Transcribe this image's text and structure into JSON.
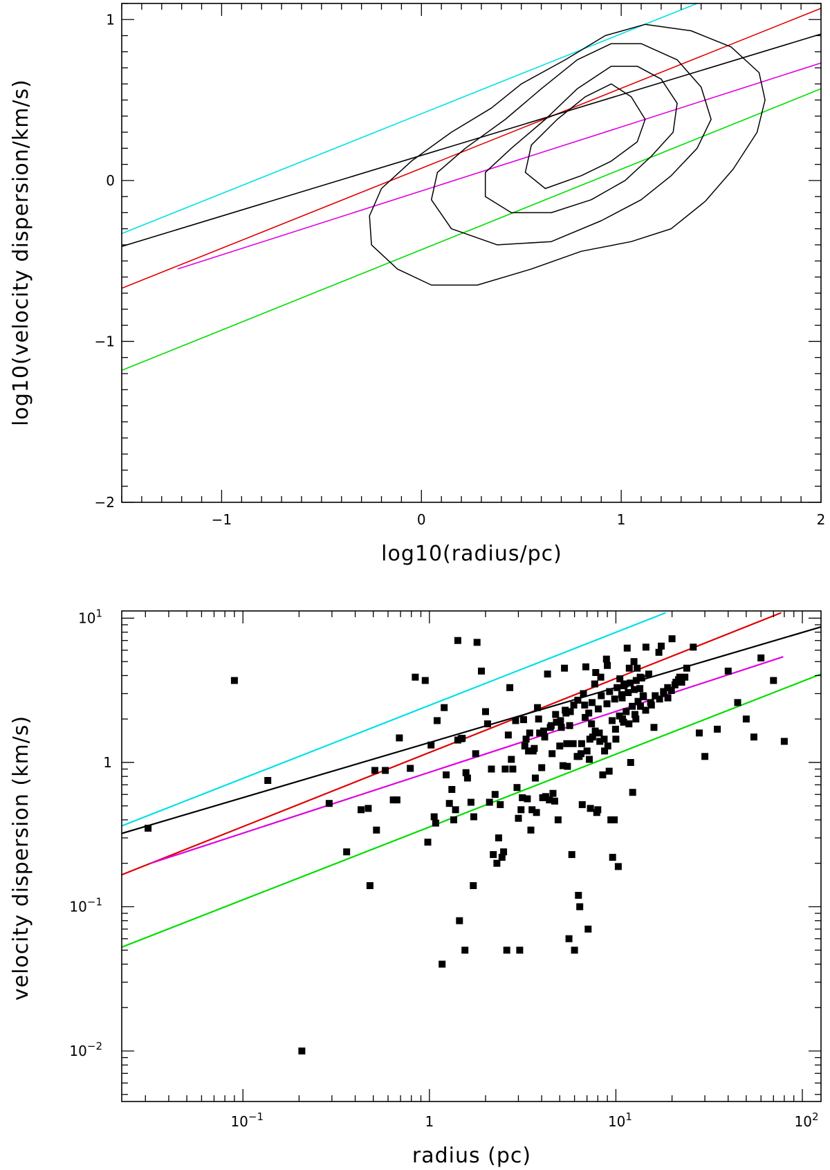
{
  "chart_data": [
    {
      "type": "line",
      "panel": "top",
      "xlabel": "log10(radius/pc)",
      "ylabel": "log10(velocity dispersion/km/s)",
      "xlim": [
        -1.5,
        2
      ],
      "ylim": [
        -2,
        1.1
      ],
      "xticks": [
        -1,
        0,
        1,
        2
      ],
      "xtick_labels": [
        "−1",
        "0",
        "1",
        "2"
      ],
      "yticks": [
        -2,
        -1,
        0,
        1
      ],
      "ytick_labels": [
        "−2",
        "−1",
        "0",
        "1"
      ],
      "grid": false,
      "series": [
        {
          "name": "cyan",
          "color": "#00e0e8",
          "x": [
            -1.5,
            1.38
          ],
          "y": [
            -0.33,
            1.1
          ]
        },
        {
          "name": "red",
          "color": "#e00000",
          "x": [
            -1.5,
            2.0
          ],
          "y": [
            -0.67,
            1.07
          ]
        },
        {
          "name": "black",
          "color": "#000000",
          "x": [
            -1.5,
            2.0
          ],
          "y": [
            -0.41,
            0.91
          ]
        },
        {
          "name": "magenta",
          "color": "#e000e0",
          "x": [
            -1.22,
            2.0
          ],
          "y": [
            -0.55,
            0.73
          ]
        },
        {
          "name": "green",
          "color": "#00dd00",
          "x": [
            -1.5,
            2.0
          ],
          "y": [
            -1.18,
            0.57
          ]
        }
      ],
      "contours": [
        {
          "level": 1,
          "x": [
            1.12,
            1.35,
            1.55,
            1.69,
            1.72,
            1.68,
            1.56,
            1.42,
            1.25,
            1.05,
            0.8,
            0.55,
            0.28,
            0.05,
            -0.12,
            -0.25,
            -0.26,
            -0.2,
            -0.05,
            0.15,
            0.35,
            0.5,
            0.72,
            0.92
          ],
          "y": [
            0.97,
            0.93,
            0.83,
            0.67,
            0.5,
            0.3,
            0.07,
            -0.13,
            -0.3,
            -0.38,
            -0.44,
            -0.55,
            -0.65,
            -0.65,
            -0.55,
            -0.4,
            -0.22,
            -0.05,
            0.12,
            0.3,
            0.45,
            0.6,
            0.75,
            0.9
          ]
        },
        {
          "level": 2,
          "x": [
            1.1,
            1.28,
            1.4,
            1.45,
            1.38,
            1.25,
            1.1,
            0.9,
            0.65,
            0.38,
            0.15,
            0.05,
            0.08,
            0.22,
            0.42,
            0.6,
            0.78,
            0.95
          ],
          "y": [
            0.85,
            0.75,
            0.58,
            0.38,
            0.2,
            0.03,
            -0.12,
            -0.25,
            -0.38,
            -0.4,
            -0.3,
            -0.12,
            0.05,
            0.2,
            0.38,
            0.57,
            0.75,
            0.85
          ]
        },
        {
          "level": 3,
          "x": [
            1.08,
            1.2,
            1.28,
            1.26,
            1.15,
            1.02,
            0.85,
            0.65,
            0.45,
            0.32,
            0.32,
            0.45,
            0.62,
            0.78,
            0.95
          ],
          "y": [
            0.71,
            0.63,
            0.48,
            0.3,
            0.15,
            0.0,
            -0.12,
            -0.2,
            -0.2,
            -0.1,
            0.05,
            0.2,
            0.38,
            0.57,
            0.71
          ]
        },
        {
          "level": 4,
          "x": [
            0.95,
            1.05,
            1.12,
            1.08,
            0.95,
            0.8,
            0.62,
            0.52,
            0.55,
            0.68,
            0.82,
            0.95
          ],
          "y": [
            0.6,
            0.52,
            0.38,
            0.24,
            0.12,
            0.03,
            -0.05,
            0.05,
            0.22,
            0.38,
            0.52,
            0.6
          ]
        }
      ]
    },
    {
      "type": "scatter",
      "panel": "bottom",
      "xlabel": "radius (pc)",
      "ylabel": "velocity dispersion (km/s)",
      "xscale": "log",
      "yscale": "log",
      "xlim_log10": [
        -1.65,
        2.1
      ],
      "ylim_log10": [
        -2.35,
        1.05
      ],
      "xticks_log10": [
        -1,
        0,
        1,
        2
      ],
      "xtick_labels": [
        {
          "base": "10",
          "exp": "−1"
        },
        {
          "base": "1",
          "exp": ""
        },
        {
          "base": "10",
          "exp": "1"
        },
        {
          "base": "10",
          "exp": "2"
        }
      ],
      "yticks_log10": [
        -2,
        -1,
        0,
        1
      ],
      "ytick_labels": [
        {
          "base": "10",
          "exp": "−2"
        },
        {
          "base": "10",
          "exp": "−1"
        },
        {
          "base": "1",
          "exp": ""
        },
        {
          "base": "10",
          "exp": "1"
        }
      ],
      "grid": false,
      "series": [
        {
          "name": "cyan",
          "color": "#00e0e8",
          "x": [
            0.022,
            18.5
          ],
          "y": [
            0.36,
            10.9
          ]
        },
        {
          "name": "red",
          "color": "#e00000",
          "x": [
            0.022,
            77
          ],
          "y": [
            0.165,
            10.9
          ]
        },
        {
          "name": "black",
          "color": "#000000",
          "x": [
            0.022,
            126
          ],
          "y": [
            0.32,
            8.7
          ]
        },
        {
          "name": "magenta",
          "color": "#e000e0",
          "x": [
            0.032,
            79
          ],
          "y": [
            0.2,
            5.4
          ]
        },
        {
          "name": "green",
          "color": "#00dd00",
          "x": [
            0.022,
            126
          ],
          "y": [
            0.052,
            4.1
          ]
        }
      ],
      "points": {
        "x": [
          0.031,
          0.09,
          0.136,
          0.207,
          0.29,
          0.36,
          0.43,
          0.47,
          0.48,
          0.51,
          0.52,
          0.58,
          0.64,
          0.67,
          0.69,
          0.79,
          0.84,
          0.95,
          0.98,
          1.02,
          1.06,
          1.08,
          1.1,
          1.17,
          1.23,
          1.28,
          1.32,
          1.35,
          1.38,
          1.42,
          1.42,
          1.45,
          1.48,
          1.5,
          1.55,
          1.57,
          1.6,
          1.67,
          1.72,
          1.73,
          1.77,
          1.8,
          2.0,
          2.05,
          2.1,
          2.2,
          2.3,
          2.35,
          2.4,
          2.45,
          2.5,
          2.6,
          2.65,
          2.7,
          2.8,
          2.9,
          2.95,
          3.0,
          3.05,
          3.1,
          3.15,
          3.2,
          3.3,
          3.35,
          3.4,
          3.5,
          3.55,
          3.6,
          3.7,
          3.75,
          3.8,
          3.9,
          4.0,
          4.05,
          4.1,
          4.2,
          4.3,
          4.4,
          4.5,
          4.6,
          4.7,
          4.8,
          4.9,
          5.0,
          5.1,
          5.2,
          5.3,
          5.4,
          5.5,
          5.6,
          5.7,
          5.8,
          5.9,
          6.0,
          6.2,
          6.3,
          6.4,
          6.5,
          6.6,
          6.7,
          6.8,
          6.9,
          7.0,
          7.1,
          7.2,
          7.3,
          7.4,
          7.5,
          7.7,
          7.8,
          7.9,
          8.0,
          8.2,
          8.3,
          8.5,
          8.7,
          8.9,
          9.0,
          9.2,
          9.4,
          9.6,
          9.8,
          10.0,
          10.3,
          10.5,
          10.8,
          11.0,
          11.2,
          11.5,
          11.8,
          12.0,
          12.3,
          12.5,
          12.8,
          13.0,
          13.5,
          14.0,
          14.5,
          15.0,
          15.5,
          16.0,
          17.0,
          17.5,
          18.0,
          19.0,
          20.0,
          21.0,
          22.0,
          24.0,
          26.0,
          28.0,
          30.0,
          35.0,
          40.0,
          45.0,
          50.0,
          55.0,
          60.0,
          70.0,
          80.0,
          1.2,
          1.9,
          2.25,
          2.55,
          3.25,
          3.45,
          3.85,
          4.15,
          4.45,
          4.75,
          5.05,
          5.35,
          5.65,
          5.95,
          6.25,
          6.55,
          6.85,
          7.15,
          7.45,
          7.75,
          8.05,
          8.35,
          8.65,
          8.95,
          9.25,
          9.55,
          9.85,
          10.15,
          10.45,
          10.75,
          11.05,
          11.35,
          11.65,
          11.95,
          12.25,
          12.55,
          12.85,
          13.15,
          13.45,
          13.75,
          14.05,
          2.15,
          2.75,
          3.65,
          4.55,
          5.45,
          6.35,
          7.25,
          8.15,
          9.05,
          9.95,
          10.85,
          11.75,
          12.65,
          13.55,
          14.45,
          15.35,
          16.25,
          17.15,
          18.05,
          18.95,
          19.85,
          20.75,
          21.65,
          22.55,
          23.45
        ],
        "y": [
          0.35,
          3.7,
          0.75,
          0.01,
          0.52,
          0.24,
          0.47,
          0.48,
          0.14,
          0.88,
          0.34,
          0.88,
          0.55,
          0.55,
          1.48,
          0.91,
          3.9,
          3.7,
          0.28,
          1.32,
          0.42,
          0.38,
          1.95,
          0.04,
          0.82,
          0.52,
          0.65,
          0.4,
          0.47,
          1.43,
          7.0,
          0.08,
          1.46,
          1.47,
          0.05,
          0.85,
          0.78,
          0.53,
          0.14,
          0.42,
          1.15,
          6.8,
          2.25,
          1.85,
          0.53,
          0.23,
          0.2,
          0.3,
          0.51,
          0.22,
          0.24,
          0.05,
          1.55,
          3.3,
          0.9,
          1.95,
          0.67,
          0.41,
          0.05,
          0.47,
          0.57,
          1.98,
          1.45,
          0.56,
          1.2,
          0.34,
          0.47,
          1.2,
          0.78,
          0.45,
          2.4,
          1.6,
          0.92,
          0.57,
          1.65,
          0.58,
          4.1,
          0.55,
          1.8,
          0.61,
          0.54,
          1.9,
          0.4,
          1.3,
          1.75,
          0.95,
          4.5,
          2.2,
          0.94,
          0.06,
          2.25,
          0.23,
          1.35,
          0.05,
          1.1,
          0.12,
          0.1,
          1.15,
          0.51,
          3.0,
          2.5,
          4.6,
          1.2,
          0.07,
          1.05,
          0.48,
          1.85,
          1.5,
          3.5,
          4.2,
          0.45,
          0.47,
          1.4,
          3.9,
          0.82,
          1.2,
          5.2,
          4.7,
          0.87,
          0.4,
          0.22,
          0.4,
          1.45,
          0.19,
          3.8,
          2.8,
          1.9,
          3.5,
          6.2,
          4.5,
          1.0,
          0.62,
          5.0,
          2.0,
          4.5,
          3.9,
          2.9,
          6.3,
          4.1,
          2.5,
          1.75,
          5.8,
          6.4,
          3.1,
          2.8,
          7.2,
          3.6,
          3.9,
          4.5,
          6.3,
          1.6,
          1.1,
          1.7,
          4.3,
          2.6,
          2.0,
          1.5,
          5.3,
          3.7,
          1.4,
          2.4,
          4.3,
          0.6,
          0.9,
          1.3,
          1.6,
          2.0,
          1.5,
          1.75,
          2.15,
          1.95,
          2.3,
          1.8,
          2.5,
          2.7,
          1.35,
          2.05,
          2.2,
          2.6,
          1.65,
          2.35,
          2.9,
          1.45,
          2.55,
          3.1,
          1.95,
          2.75,
          3.3,
          2.1,
          2.95,
          3.4,
          2.25,
          3.05,
          3.55,
          2.45,
          3.2,
          3.7,
          2.65,
          3.25,
          3.85,
          2.85,
          0.9,
          1.05,
          1.25,
          1.15,
          1.35,
          1.1,
          1.45,
          1.6,
          1.3,
          1.7,
          2.0,
          1.85,
          2.15,
          2.45,
          2.3,
          2.6,
          2.9,
          2.75,
          3.0,
          3.3,
          3.15,
          3.45,
          3.75,
          3.6,
          3.9
        ]
      }
    }
  ]
}
